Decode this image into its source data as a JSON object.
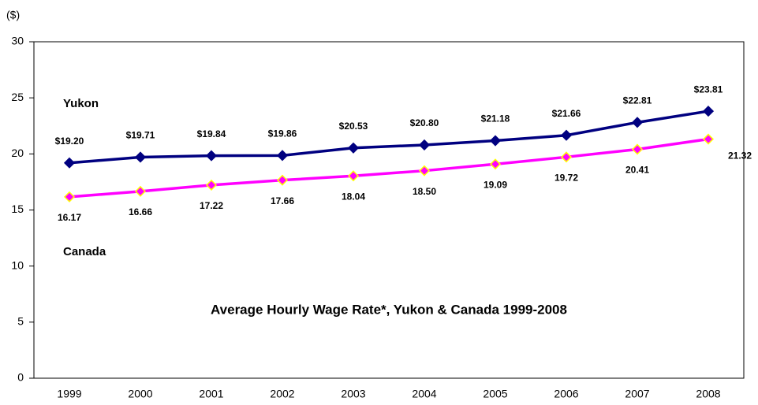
{
  "chart_data": {
    "type": "line",
    "title": "Average Hourly Wage Rate*, Yukon & Canada 1999-2008",
    "y_label": "($)",
    "categories": [
      "1999",
      "2000",
      "2001",
      "2002",
      "2003",
      "2004",
      "2005",
      "2006",
      "2007",
      "2008"
    ],
    "series": [
      {
        "name": "Yukon",
        "color": "#000080",
        "marker_edge": "#000080",
        "values": [
          19.2,
          19.71,
          19.84,
          19.86,
          20.53,
          20.8,
          21.18,
          21.66,
          22.81,
          23.81
        ],
        "value_labels": [
          "$19.20",
          "$19.71",
          "$19.84",
          "$19.86",
          "$20.53",
          "$20.80",
          "$21.18",
          "$21.66",
          "$22.81",
          "$23.81"
        ]
      },
      {
        "name": "Canada",
        "color": "#ff00ff",
        "marker_edge": "#ffff00",
        "values": [
          16.17,
          16.66,
          17.22,
          17.66,
          18.04,
          18.5,
          19.09,
          19.72,
          20.41,
          21.32
        ],
        "value_labels": [
          "16.17",
          "16.66",
          "17.22",
          "17.66",
          "18.04",
          "18.50",
          "19.09",
          "19.72",
          "20.41",
          "21.32"
        ]
      }
    ],
    "ylim": [
      0,
      30
    ],
    "yticks": [
      0,
      5,
      10,
      15,
      20,
      25,
      30
    ],
    "grid": false
  }
}
